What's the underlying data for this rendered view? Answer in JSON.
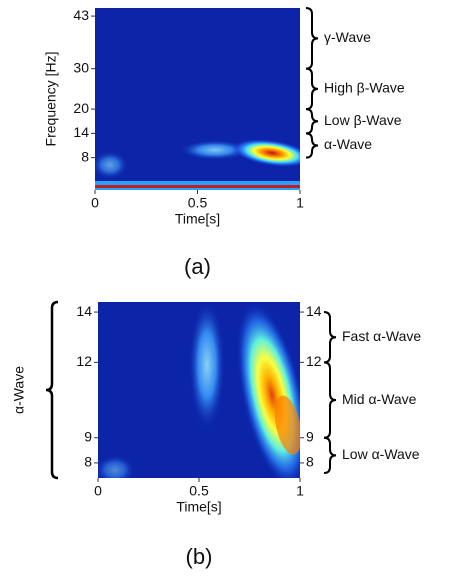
{
  "chart_data": [
    {
      "type": "spectrogram",
      "caption": "(a)",
      "xlabel": "Time[s]",
      "ylabel": "Frequency [Hz]",
      "xlim": [
        0,
        1
      ],
      "xticks": [
        0,
        0.5,
        1
      ],
      "ylim": [
        0,
        45
      ],
      "yticks": [
        8,
        14,
        20,
        30,
        43
      ],
      "bands": [
        {
          "label": "γ-Wave",
          "from": 30,
          "to": 45
        },
        {
          "label": "High β-Wave",
          "from": 20,
          "to": 30
        },
        {
          "label": "Low β-Wave",
          "from": 14,
          "to": 20
        },
        {
          "label": "α-Wave",
          "from": 8,
          "to": 14
        }
      ]
    },
    {
      "type": "spectrogram",
      "caption": "(b)",
      "xlabel": "Time[s]",
      "ylabel": "α-Wave",
      "xlim": [
        0,
        1
      ],
      "xticks": [
        0,
        0.5,
        1
      ],
      "ylim": [
        7.4,
        14.4
      ],
      "yticks": [
        8,
        9,
        12,
        14
      ],
      "bands": [
        {
          "label": "Fast α-Wave",
          "from": 12,
          "to": 14
        },
        {
          "label": "Mid α-Wave",
          "from": 9,
          "to": 12
        },
        {
          "label": "Low α-Wave",
          "from": 7.6,
          "to": 9
        }
      ]
    }
  ]
}
